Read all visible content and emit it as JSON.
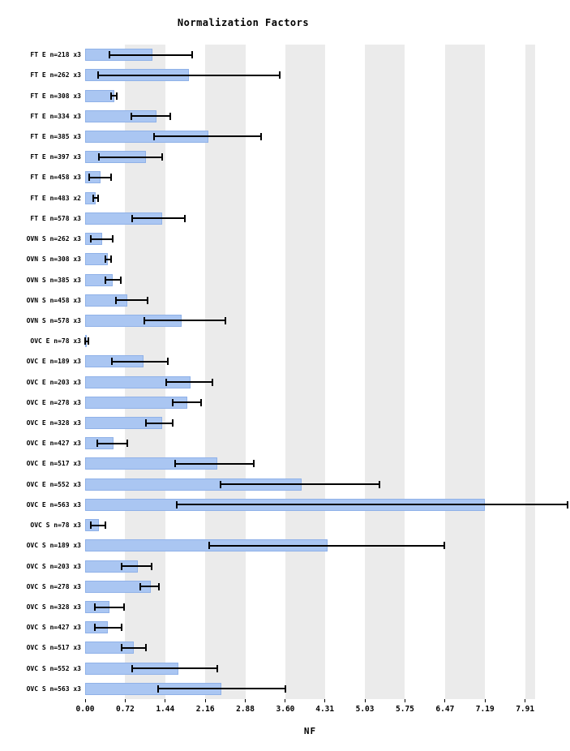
{
  "chart_data": {
    "type": "bar",
    "orientation": "horizontal",
    "title": "Normalization Factors",
    "xlabel": "NF",
    "legend": null,
    "grid": "alternating-vertical-bands",
    "xlim": [
      0,
      8.09
    ],
    "x_ticks": [
      0.0,
      0.72,
      1.44,
      2.16,
      2.88,
      3.6,
      4.31,
      5.03,
      5.75,
      6.47,
      7.19,
      7.91
    ],
    "x_tick_labels": [
      "0.00",
      "0.72",
      "1.44",
      "2.16",
      "2.88",
      "3.60",
      "4.31",
      "5.03",
      "5.75",
      "6.47",
      "7.19",
      "7.91"
    ],
    "bar_color": "#aac6f2",
    "bar_border_color": "#8fb1e8",
    "stripe_color": "#ebebeb",
    "error_bar_color": "#000000",
    "rows": [
      {
        "label": "FT E n=218 x3",
        "value": 1.21,
        "err_low": 0.44,
        "err_high": 1.92
      },
      {
        "label": "FT E n=262 x3",
        "value": 1.87,
        "err_low": 0.23,
        "err_high": 3.5
      },
      {
        "label": "FT E n=308 x3",
        "value": 0.52,
        "err_low": 0.47,
        "err_high": 0.57
      },
      {
        "label": "FT E n=334 x3",
        "value": 1.28,
        "err_low": 0.83,
        "err_high": 1.53
      },
      {
        "label": "FT E n=385 x3",
        "value": 2.21,
        "err_low": 1.24,
        "err_high": 3.16
      },
      {
        "label": "FT E n=397 x3",
        "value": 1.09,
        "err_low": 0.25,
        "err_high": 1.38
      },
      {
        "label": "FT E n=458 x3",
        "value": 0.28,
        "err_low": 0.07,
        "err_high": 0.47
      },
      {
        "label": "FT E n=483 x2",
        "value": 0.19,
        "err_low": 0.15,
        "err_high": 0.23
      },
      {
        "label": "FT E n=578 x3",
        "value": 1.38,
        "err_low": 0.85,
        "err_high": 1.8
      },
      {
        "label": "OVN S n=262 x3",
        "value": 0.3,
        "err_low": 0.1,
        "err_high": 0.5
      },
      {
        "label": "OVN S n=308 x3",
        "value": 0.41,
        "err_low": 0.36,
        "err_high": 0.46
      },
      {
        "label": "OVN S n=385 x3",
        "value": 0.5,
        "err_low": 0.36,
        "err_high": 0.64
      },
      {
        "label": "OVN S n=458 x3",
        "value": 0.76,
        "err_low": 0.55,
        "err_high": 1.12
      },
      {
        "label": "OVN S n=578 x3",
        "value": 1.73,
        "err_low": 1.06,
        "err_high": 2.52
      },
      {
        "label": "OVC E n=78 x3",
        "value": 0.02,
        "err_low": 0.0,
        "err_high": 0.06
      },
      {
        "label": "OVC E n=189 x3",
        "value": 1.05,
        "err_low": 0.48,
        "err_high": 1.49
      },
      {
        "label": "OVC E n=203 x3",
        "value": 1.9,
        "err_low": 1.46,
        "err_high": 2.29
      },
      {
        "label": "OVC E n=278 x3",
        "value": 1.84,
        "err_low": 1.57,
        "err_high": 2.08
      },
      {
        "label": "OVC E n=328 x3",
        "value": 1.38,
        "err_low": 1.09,
        "err_high": 1.57
      },
      {
        "label": "OVC E n=427 x3",
        "value": 0.51,
        "err_low": 0.22,
        "err_high": 0.76
      },
      {
        "label": "OVC E n=517 x3",
        "value": 2.38,
        "err_low": 1.62,
        "err_high": 3.03
      },
      {
        "label": "OVC E n=552 x3",
        "value": 3.89,
        "err_low": 2.43,
        "err_high": 5.29
      },
      {
        "label": "OVC E n=563 x3",
        "value": 7.19,
        "err_low": 1.65,
        "err_high": 8.67
      },
      {
        "label": "OVC S n=78 x3",
        "value": 0.25,
        "err_low": 0.1,
        "err_high": 0.36
      },
      {
        "label": "OVC S n=189 x3",
        "value": 4.36,
        "err_low": 2.23,
        "err_high": 6.46
      },
      {
        "label": "OVC S n=203 x3",
        "value": 0.95,
        "err_low": 0.66,
        "err_high": 1.2
      },
      {
        "label": "OVC S n=278 x3",
        "value": 1.18,
        "err_low": 0.99,
        "err_high": 1.33
      },
      {
        "label": "OVC S n=328 x3",
        "value": 0.44,
        "err_low": 0.17,
        "err_high": 0.7
      },
      {
        "label": "OVC S n=427 x3",
        "value": 0.41,
        "err_low": 0.17,
        "err_high": 0.66
      },
      {
        "label": "OVC S n=517 x3",
        "value": 0.87,
        "err_low": 0.66,
        "err_high": 1.09
      },
      {
        "label": "OVC S n=552 x3",
        "value": 1.68,
        "err_low": 0.85,
        "err_high": 2.38
      },
      {
        "label": "OVC S n=563 x3",
        "value": 2.45,
        "err_low": 1.31,
        "err_high": 3.6
      }
    ]
  }
}
